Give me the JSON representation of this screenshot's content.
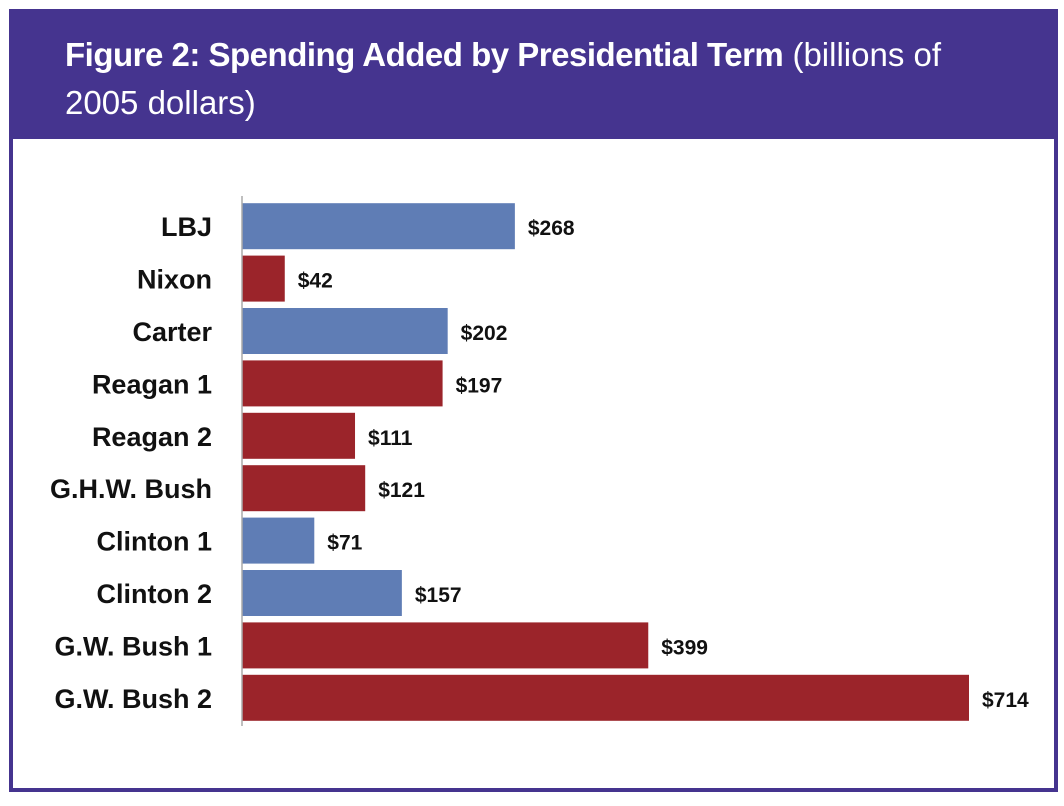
{
  "header": {
    "title_bold": "Figure 2: Spending Added by Presidential Term",
    "title_normal": " (billions of 2005 dollars)"
  },
  "colors": {
    "frame": "#45348f",
    "democrat_bar": "#5f7db5",
    "republican_bar": "#9b242a",
    "axis": "#aaaaaa"
  },
  "chart_data": {
    "type": "bar",
    "orientation": "horizontal",
    "title": "Figure 2: Spending Added by Presidential Term (billions of 2005 dollars)",
    "xlabel": "",
    "ylabel": "",
    "categories": [
      "LBJ",
      "Nixon",
      "Carter",
      "Reagan 1",
      "Reagan 2",
      "G.H.W. Bush",
      "Clinton 1",
      "Clinton 2",
      "G.W. Bush 1",
      "G.W. Bush 2"
    ],
    "values": [
      268,
      42,
      202,
      197,
      111,
      121,
      71,
      157,
      399,
      714
    ],
    "value_labels": [
      "$268",
      "$42",
      "$202",
      "$197",
      "$111",
      "$121",
      "$71",
      "$157",
      "$399",
      "$714"
    ],
    "party": [
      "D",
      "R",
      "D",
      "R",
      "R",
      "R",
      "D",
      "D",
      "R",
      "R"
    ],
    "xlim": [
      0,
      714
    ],
    "grid": false,
    "legend": "none",
    "units": "billions of 2005 dollars"
  }
}
